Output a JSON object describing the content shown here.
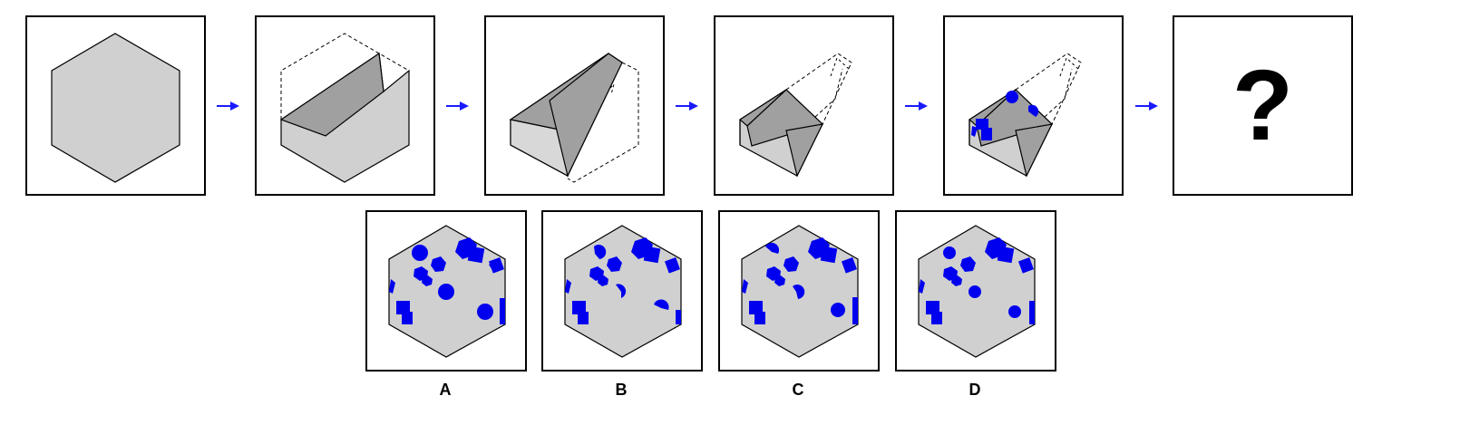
{
  "sequence": {
    "unknown_label": "?"
  },
  "options": [
    {
      "label": "A"
    },
    {
      "label": "B"
    },
    {
      "label": "C"
    },
    {
      "label": "D"
    }
  ],
  "colors": {
    "paper": "#d0d0d0",
    "fold": "#a0a0a0",
    "stroke": "#000000",
    "arrow": "#1a1aff",
    "holes": "#0000ee"
  }
}
